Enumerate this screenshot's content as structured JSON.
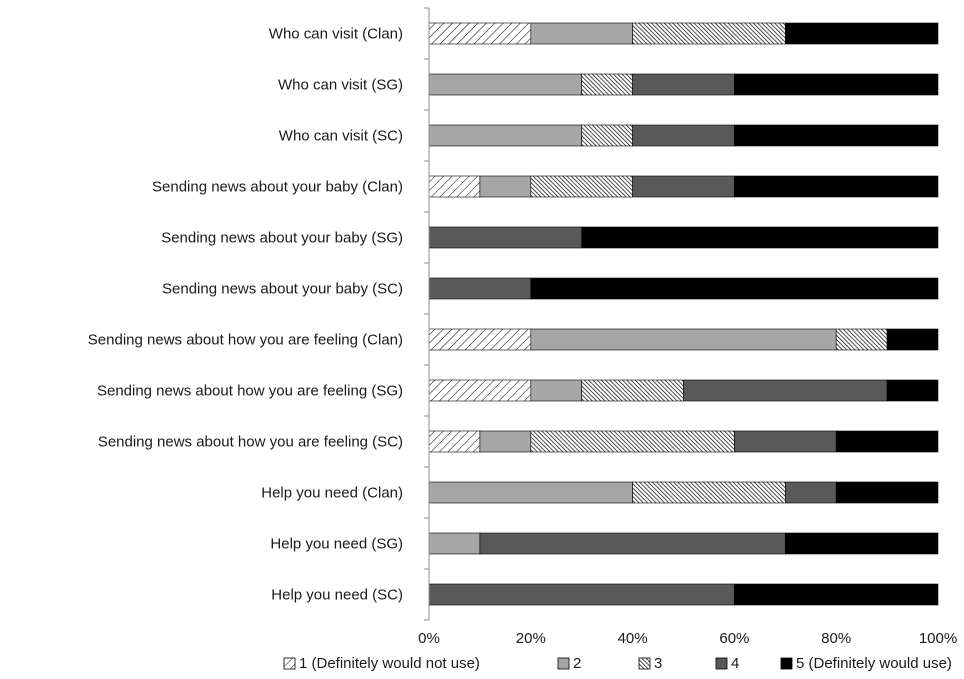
{
  "chart_data": {
    "type": "bar",
    "orientation": "horizontal",
    "stacked": true,
    "percent_stacked": true,
    "categories": [
      "Who can visit (Clan)",
      "Who can visit (SG)",
      "Who can visit (SC)",
      "Sending news about your baby (Clan)",
      "Sending news about your baby (SG)",
      "Sending news about your baby (SC)",
      "Sending news about how you are feeling (Clan)",
      "Sending news about how you are feeling (SG)",
      "Sending news about how you are feeling (SC)",
      "Help you need (Clan)",
      "Help you need (SG)",
      "Help you need (SC)"
    ],
    "series": [
      {
        "name": "1 (Definitely would not use)",
        "pattern": "diagonal-sparse",
        "color": "#ffffff",
        "values": [
          20,
          0,
          0,
          10,
          0,
          0,
          20,
          20,
          10,
          0,
          0,
          0
        ]
      },
      {
        "name": "2",
        "pattern": "solid",
        "color": "#a6a6a6",
        "values": [
          20,
          30,
          30,
          10,
          0,
          0,
          60,
          10,
          10,
          40,
          10,
          0
        ]
      },
      {
        "name": "3",
        "pattern": "diagonal-dense",
        "color": "#ffffff",
        "values": [
          30,
          10,
          10,
          20,
          0,
          0,
          10,
          20,
          40,
          30,
          0,
          0
        ]
      },
      {
        "name": "4",
        "pattern": "solid",
        "color": "#595959",
        "values": [
          0,
          20,
          20,
          20,
          30,
          20,
          0,
          40,
          20,
          10,
          60,
          60
        ]
      },
      {
        "name": "5 (Definitely would use)",
        "pattern": "solid",
        "color": "#000000",
        "values": [
          30,
          40,
          40,
          40,
          70,
          80,
          10,
          10,
          20,
          20,
          30,
          40
        ]
      }
    ],
    "x_ticks": [
      "0%",
      "20%",
      "40%",
      "60%",
      "80%",
      "100%"
    ],
    "xlim": [
      0,
      100
    ],
    "grid": false,
    "legend_position": "bottom"
  }
}
